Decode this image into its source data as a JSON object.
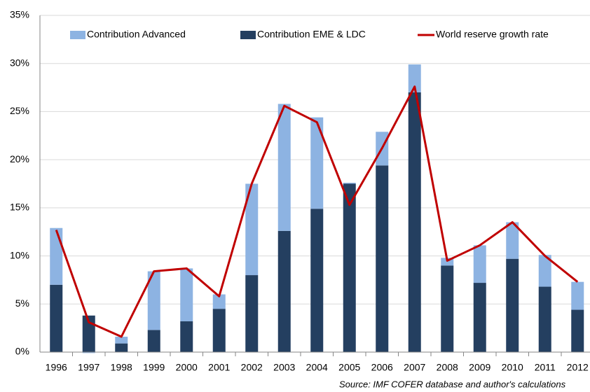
{
  "chart_data": {
    "type": "stacked_bar_line",
    "categories": [
      "1996",
      "1997",
      "1998",
      "1999",
      "2000",
      "2001",
      "2002",
      "2003",
      "2004",
      "2005",
      "2006",
      "2007",
      "2008",
      "2009",
      "2010",
      "2011",
      "2012"
    ],
    "series": [
      {
        "name": "Contribution EME & LDC",
        "color": "#243f60",
        "kind": "bar",
        "values": [
          7.0,
          3.8,
          0.9,
          2.3,
          3.2,
          4.5,
          8.0,
          12.6,
          14.9,
          17.5,
          19.4,
          27.0,
          9.0,
          7.2,
          9.7,
          6.8,
          4.4
        ]
      },
      {
        "name": "Contribution Advanced",
        "color": "#8db3e2",
        "kind": "bar",
        "values": [
          5.9,
          -0.1,
          0.7,
          6.1,
          5.5,
          1.5,
          9.5,
          13.2,
          9.5,
          0.1,
          3.5,
          2.9,
          0.8,
          3.9,
          3.8,
          3.3,
          2.9
        ]
      },
      {
        "name": "World reserve growth rate",
        "color": "#c00000",
        "kind": "line",
        "values": [
          12.7,
          3.1,
          1.6,
          8.4,
          8.7,
          5.8,
          17.5,
          25.6,
          23.9,
          15.3,
          21.2,
          27.6,
          9.5,
          11.1,
          13.5,
          10.0,
          7.3
        ]
      }
    ],
    "ylim": [
      0,
      35
    ],
    "yticks": [
      {
        "value": 0,
        "label": "0%"
      },
      {
        "value": 5,
        "label": "5%"
      },
      {
        "value": 10,
        "label": "10%"
      },
      {
        "value": 15,
        "label": "15%"
      },
      {
        "value": 20,
        "label": "20%"
      },
      {
        "value": 25,
        "label": "25%"
      },
      {
        "value": 30,
        "label": "30%"
      },
      {
        "value": 35,
        "label": "35%"
      }
    ],
    "grid": true,
    "note": "Source: IMF COFER database and author's calculations"
  }
}
